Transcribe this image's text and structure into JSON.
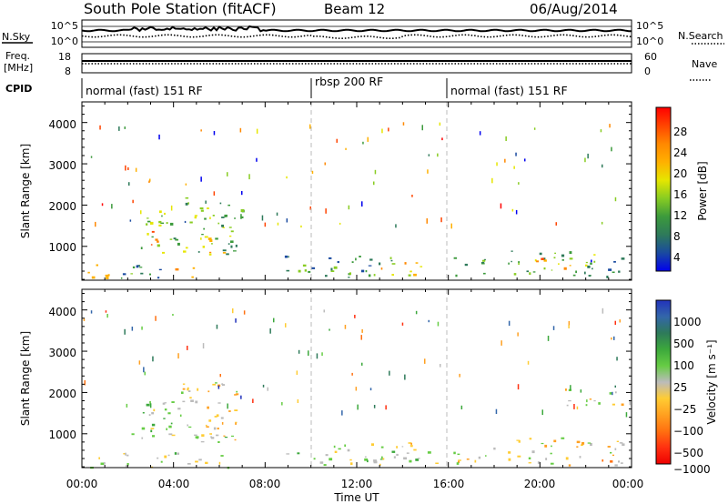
{
  "header": {
    "station_title": "South Pole Station (fitACF)",
    "beam": "Beam 12",
    "date": "06/Aug/2014"
  },
  "panels": {
    "nsky": {
      "label": "N.Sky",
      "left_ticks": [
        "10^5",
        "10^0"
      ],
      "right_ticks": [
        "10^5",
        "10^0"
      ],
      "right_label": "N.Search"
    },
    "freq": {
      "label_top": "Freq.",
      "label_unit": "[MHz]",
      "left_ticks": [
        "18",
        "8"
      ],
      "right_ticks": [
        "60",
        "0"
      ],
      "right_label": "Nave"
    },
    "cpid": {
      "label": "CPID",
      "segments": [
        {
          "text": "normal (fast) 151 RF",
          "start_h": 0
        },
        {
          "text": "rbsp 200 RF",
          "start_h": 10
        },
        {
          "text": "normal (fast) 151 RF",
          "start_h": 16
        }
      ]
    }
  },
  "axes": {
    "ylabel": "Slant Range [km]",
    "xlabel": "Time UT",
    "x_ticks": [
      "00:00",
      "04:00",
      "08:00",
      "12:00",
      "16:00",
      "20:00",
      "00:00"
    ],
    "y_ticks": [
      "1000",
      "2000",
      "3000",
      "4000"
    ]
  },
  "colorbars": {
    "power": {
      "label": "Power [dB]",
      "ticks": [
        "28",
        "24",
        "20",
        "16",
        "12",
        "8",
        "4"
      ],
      "colors": [
        "#ff0000",
        "#ff4400",
        "#ff8800",
        "#ffb000",
        "#e6e600",
        "#88cc22",
        "#3c9a3c",
        "#2e7a5a",
        "#1a4aa0",
        "#0000ee"
      ]
    },
    "velocity": {
      "label": "Velocity [m s⁻¹]",
      "ticks": [
        "1000",
        "500",
        "100",
        "25",
        "−25",
        "−100",
        "−500",
        "−1000"
      ],
      "colors": [
        "#2233bb",
        "#3366aa",
        "#2e7a5a",
        "#3ca83c",
        "#66cc44",
        "#bbbbbb",
        "#ffcc33",
        "#ffa020",
        "#ff7010",
        "#ff3010",
        "#ee0000"
      ]
    }
  },
  "chart_data": [
    {
      "type": "heatmap",
      "title": "Power",
      "xlabel": "Time UT",
      "ylabel": "Slant Range [km]",
      "xlim_hours": [
        0,
        24
      ],
      "ylim_km": [
        180,
        4500
      ],
      "clim": [
        0,
        31
      ],
      "colorbar_label": "Power [dB]",
      "echo_regions": [
        {
          "t0": 0.1,
          "t1": 1.5,
          "r0": 190,
          "r1": 600,
          "val": 18
        },
        {
          "t0": 1.0,
          "t1": 3.8,
          "r0": 200,
          "r1": 560,
          "val": 8
        },
        {
          "t0": 2.4,
          "t1": 4.2,
          "r0": 850,
          "r1": 1900,
          "val": 14
        },
        {
          "t0": 2.8,
          "t1": 3.6,
          "r0": 1000,
          "r1": 1400,
          "val": 24
        },
        {
          "t0": 3.9,
          "t1": 4.9,
          "r0": 190,
          "r1": 500,
          "val": 26
        },
        {
          "t0": 4.4,
          "t1": 7.0,
          "r0": 750,
          "r1": 2200,
          "val": 12
        },
        {
          "t0": 5.0,
          "t1": 6.2,
          "r0": 800,
          "r1": 1300,
          "val": 20
        },
        {
          "t0": 8.8,
          "t1": 13.5,
          "r0": 250,
          "r1": 800,
          "val": 9
        },
        {
          "t0": 12.6,
          "t1": 14.8,
          "r0": 300,
          "r1": 650,
          "val": 18
        },
        {
          "t0": 16.2,
          "t1": 17.6,
          "r0": 250,
          "r1": 750,
          "val": 8
        },
        {
          "t0": 18.6,
          "t1": 22.6,
          "r0": 300,
          "r1": 950,
          "val": 12
        },
        {
          "t0": 19.8,
          "t1": 21.4,
          "r0": 450,
          "r1": 800,
          "val": 22
        },
        {
          "t0": 21.8,
          "t1": 23.6,
          "r0": 250,
          "r1": 750,
          "val": 7
        }
      ]
    },
    {
      "type": "heatmap",
      "title": "Velocity",
      "xlabel": "Time UT",
      "ylabel": "Slant Range [km]",
      "xlim_hours": [
        0,
        24
      ],
      "ylim_km": [
        180,
        4500
      ],
      "clim": [
        -1200,
        1200
      ],
      "colorbar_label": "Velocity [m s⁻¹]",
      "echo_regions": [
        {
          "t0": 0.1,
          "t1": 2.0,
          "r0": 190,
          "r1": 600,
          "val": -80
        },
        {
          "t0": 2.0,
          "t1": 4.3,
          "r0": 900,
          "r1": 1900,
          "val": 90
        },
        {
          "t0": 3.0,
          "t1": 6.4,
          "r0": 200,
          "r1": 560,
          "val": 40
        },
        {
          "t0": 4.3,
          "t1": 6.8,
          "r0": 750,
          "r1": 2300,
          "val": -150
        },
        {
          "t0": 5.2,
          "t1": 6.4,
          "r0": 900,
          "r1": 1500,
          "val": 0
        },
        {
          "t0": 8.8,
          "t1": 15.5,
          "r0": 250,
          "r1": 800,
          "val": 70
        },
        {
          "t0": 16.2,
          "t1": 18.0,
          "r0": 250,
          "r1": 750,
          "val": -30
        },
        {
          "t0": 18.6,
          "t1": 23.6,
          "r0": 250,
          "r1": 950,
          "val": -200
        },
        {
          "t0": 21.0,
          "t1": 23.6,
          "r0": 1700,
          "r1": 2100,
          "val": -120
        }
      ]
    }
  ]
}
